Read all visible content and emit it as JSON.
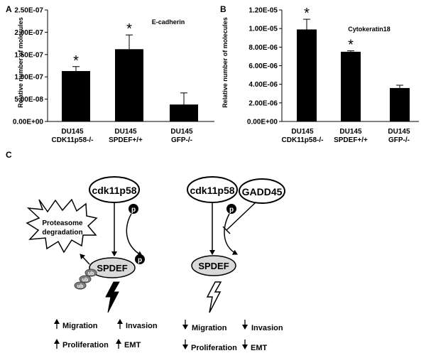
{
  "panel_labels": {
    "a": "A",
    "b": "B",
    "c": "C"
  },
  "chart_data": [
    {
      "type": "bar",
      "title": "E-cadherin",
      "ylabel": "Relative number of molecules",
      "ylim": [
        0,
        2.5e-07
      ],
      "yticks": [
        "0.00E+00",
        "5.00E-08",
        "1.00E-07",
        "1.50E-07",
        "2.00E-07",
        "2.50E-07"
      ],
      "categories": [
        [
          "DU145",
          "CDK11p58-/-"
        ],
        [
          "DU145",
          "SPDEF+/+"
        ],
        [
          "DU145",
          "GFP-/-"
        ]
      ],
      "values": [
        1.13e-07,
        1.62e-07,
        3.8e-08
      ],
      "errors": [
        1e-08,
        3.2e-08,
        2.6e-08
      ],
      "significance": [
        "*",
        "*",
        ""
      ],
      "bar_color": "#000000"
    },
    {
      "type": "bar",
      "title": "Cytokeratin18",
      "ylabel": "Relative number of molecules",
      "ylim": [
        0,
        1.2e-05
      ],
      "yticks": [
        "0.00E+00",
        "2.00E-06",
        "4.00E-06",
        "6.00E-06",
        "8.00E-06",
        "1.00E-05",
        "1.20E-05"
      ],
      "categories": [
        [
          "DU145",
          "CDK11p58-/-"
        ],
        [
          "DU145",
          "SPDEF+/+"
        ],
        [
          "DU145",
          "GFP-/-"
        ]
      ],
      "values": [
        9.9e-06,
        7.5e-06,
        3.6e-06
      ],
      "errors": [
        1.1e-06,
        1e-07,
        3e-07
      ],
      "significance": [
        "*",
        "*",
        ""
      ],
      "bar_color": "#000000"
    }
  ],
  "diagram": {
    "left": {
      "kinase": "cdk11p58",
      "phospho": "p",
      "phospho2": "p",
      "target": "SPDEF",
      "burst_line1": "Proteasome",
      "burst_line2": "degradation",
      "ub": [
        "ub",
        "ub",
        "ub"
      ],
      "effects": {
        "migration": "Migration",
        "invasion": "Invasion",
        "proliferation": "Proliferation",
        "emt": "EMT"
      }
    },
    "right": {
      "kinase": "cdk11p58",
      "inhibitor": "GADD45",
      "phospho": "p",
      "target": "SPDEF",
      "effects": {
        "migration": "Migration",
        "invasion": "Invasion",
        "proliferation": "Proliferation",
        "emt": "EMT"
      }
    },
    "colors": {
      "spdef_fill": "#d9d9d9",
      "ub_fill": "#808080"
    }
  }
}
